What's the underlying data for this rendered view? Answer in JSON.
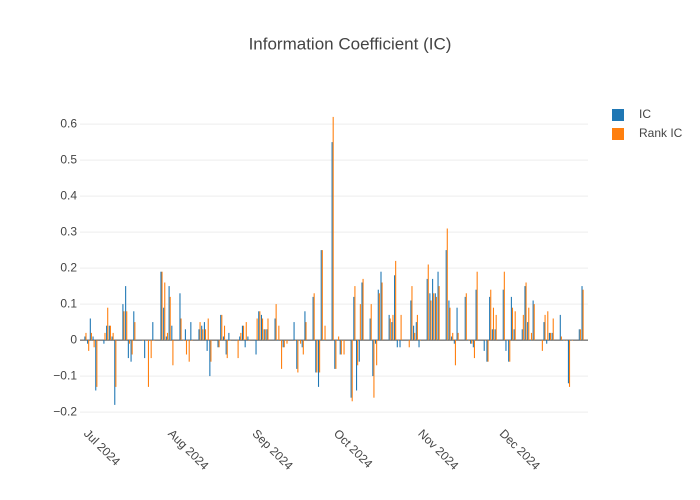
{
  "chart_data": {
    "type": "bar",
    "title": "Information Coefficient (IC)",
    "x": [
      "2024-07-01",
      "2024-07-02",
      "2024-07-03",
      "2024-07-04",
      "2024-07-05",
      "2024-07-08",
      "2024-07-09",
      "2024-07-10",
      "2024-07-11",
      "2024-07-12",
      "2024-07-15",
      "2024-07-16",
      "2024-07-17",
      "2024-07-18",
      "2024-07-19",
      "2024-07-22",
      "2024-07-23",
      "2024-07-24",
      "2024-07-25",
      "2024-07-26",
      "2024-07-29",
      "2024-07-30",
      "2024-07-31",
      "2024-08-01",
      "2024-08-02",
      "2024-08-05",
      "2024-08-06",
      "2024-08-07",
      "2024-08-08",
      "2024-08-09",
      "2024-08-12",
      "2024-08-13",
      "2024-08-14",
      "2024-08-15",
      "2024-08-16",
      "2024-08-19",
      "2024-08-20",
      "2024-08-21",
      "2024-08-22",
      "2024-08-23",
      "2024-08-26",
      "2024-08-27",
      "2024-08-28",
      "2024-08-29",
      "2024-08-30",
      "2024-09-02",
      "2024-09-03",
      "2024-09-04",
      "2024-09-05",
      "2024-09-06",
      "2024-09-09",
      "2024-09-10",
      "2024-09-11",
      "2024-09-12",
      "2024-09-13",
      "2024-09-16",
      "2024-09-17",
      "2024-09-18",
      "2024-09-19",
      "2024-09-20",
      "2024-09-23",
      "2024-09-24",
      "2024-09-25",
      "2024-09-26",
      "2024-09-27",
      "2024-09-30",
      "2024-10-01",
      "2024-10-02",
      "2024-10-03",
      "2024-10-04",
      "2024-10-07",
      "2024-10-08",
      "2024-10-09",
      "2024-10-10",
      "2024-10-11",
      "2024-10-14",
      "2024-10-15",
      "2024-10-16",
      "2024-10-17",
      "2024-10-18",
      "2024-10-21",
      "2024-10-22",
      "2024-10-23",
      "2024-10-24",
      "2024-10-25",
      "2024-10-28",
      "2024-10-29",
      "2024-10-30",
      "2024-10-31",
      "2024-11-01",
      "2024-11-04",
      "2024-11-05",
      "2024-11-06",
      "2024-11-07",
      "2024-11-08",
      "2024-11-11",
      "2024-11-12",
      "2024-11-13",
      "2024-11-14",
      "2024-11-15",
      "2024-11-18",
      "2024-11-19",
      "2024-11-20",
      "2024-11-21",
      "2024-11-22",
      "2024-11-25",
      "2024-11-26",
      "2024-11-27",
      "2024-11-28",
      "2024-11-29",
      "2024-12-02",
      "2024-12-03",
      "2024-12-04",
      "2024-12-05",
      "2024-12-06",
      "2024-12-09",
      "2024-12-10",
      "2024-12-11",
      "2024-12-12",
      "2024-12-13",
      "2024-12-16",
      "2024-12-17",
      "2024-12-18",
      "2024-12-19",
      "2024-12-20",
      "2024-12-23",
      "2024-12-24",
      "2024-12-25",
      "2024-12-26",
      "2024-12-27",
      "2024-12-30",
      "2024-12-31"
    ],
    "series": [
      {
        "name": "IC",
        "color": "#1f77b4",
        "values": [
          0.01,
          -0.01,
          0.06,
          0.01,
          -0.14,
          -0.01,
          0.04,
          0.04,
          0.01,
          -0.18,
          0.1,
          0.15,
          -0.05,
          -0.06,
          0.08,
          0.0,
          -0.05,
          0.0,
          0.0,
          0.05,
          0.19,
          0.09,
          0.01,
          0.15,
          0.04,
          0.13,
          0.0,
          0.03,
          0.0,
          0.05,
          0.03,
          0.04,
          0.05,
          -0.03,
          -0.1,
          -0.02,
          0.07,
          0.01,
          -0.04,
          0.02,
          0.0,
          0.01,
          0.04,
          -0.02,
          0.01,
          -0.04,
          0.08,
          0.07,
          0.03,
          0.03,
          0.06,
          0.0,
          0.0,
          -0.02,
          0.0,
          0.05,
          -0.08,
          0.0,
          -0.02,
          0.08,
          0.12,
          -0.09,
          -0.13,
          0.25,
          0.0,
          0.55,
          -0.08,
          0.0,
          -0.04,
          0.0,
          -0.16,
          0.12,
          -0.14,
          -0.06,
          0.16,
          0.06,
          -0.1,
          -0.01,
          0.14,
          0.19,
          0.07,
          0.05,
          0.18,
          -0.02,
          -0.02,
          0.0,
          0.11,
          0.04,
          0.05,
          -0.02,
          0.17,
          0.13,
          0.17,
          0.13,
          0.19,
          0.25,
          0.11,
          0.01,
          -0.01,
          0.09,
          0.12,
          0.0,
          -0.01,
          -0.02,
          0.14,
          -0.03,
          -0.06,
          0.12,
          0.03,
          0.03,
          0.14,
          -0.03,
          -0.06,
          0.12,
          0.03,
          0.03,
          0.15,
          0.05,
          0.0,
          0.11,
          0.0,
          0.05,
          -0.01,
          0.02,
          0.02,
          0.07,
          0.0,
          0.0,
          -0.12,
          0.0,
          0.03,
          0.15
        ]
      },
      {
        "name": "Rank IC",
        "color": "#ff7f0e",
        "values": [
          0.02,
          -0.03,
          0.02,
          -0.02,
          -0.13,
          0.02,
          0.09,
          0.04,
          0.02,
          -0.13,
          0.08,
          0.08,
          -0.01,
          -0.04,
          0.05,
          0.0,
          0.0,
          -0.13,
          -0.05,
          0.0,
          0.19,
          0.16,
          0.02,
          0.12,
          -0.07,
          0.06,
          0.0,
          -0.04,
          -0.06,
          0.0,
          0.05,
          0.03,
          0.03,
          0.06,
          -0.06,
          -0.02,
          0.07,
          0.04,
          -0.05,
          0.0,
          -0.05,
          0.02,
          0.04,
          0.05,
          0.0,
          0.06,
          0.08,
          0.06,
          0.03,
          0.06,
          0.1,
          0.04,
          -0.08,
          -0.02,
          -0.01,
          0.0,
          -0.09,
          -0.01,
          -0.04,
          0.05,
          0.13,
          -0.09,
          -0.09,
          0.25,
          0.04,
          0.62,
          -0.08,
          0.01,
          -0.04,
          -0.04,
          -0.17,
          0.15,
          -0.07,
          0.1,
          0.17,
          0.1,
          -0.16,
          -0.07,
          0.13,
          0.16,
          0.06,
          0.07,
          0.22,
          0.0,
          0.07,
          -0.02,
          0.15,
          0.02,
          0.07,
          0.0,
          0.21,
          0.11,
          0.13,
          0.12,
          0.15,
          0.31,
          0.09,
          0.02,
          -0.07,
          0.02,
          0.13,
          0.0,
          -0.01,
          -0.05,
          0.19,
          0.0,
          -0.06,
          0.14,
          0.09,
          0.07,
          0.19,
          0.0,
          -0.06,
          0.09,
          0.08,
          0.07,
          0.16,
          0.09,
          0.02,
          0.1,
          -0.03,
          0.07,
          0.08,
          0.02,
          0.06,
          0.01,
          0.0,
          0.0,
          -0.13,
          0.0,
          0.03,
          0.14
        ]
      }
    ],
    "xlim": [
      "2024-06-29",
      "2025-01-02"
    ],
    "xticks": [
      {
        "value": "2024-07-01",
        "label": "Jul 2024"
      },
      {
        "value": "2024-08-01",
        "label": "Aug 2024"
      },
      {
        "value": "2024-09-01",
        "label": "Sep 2024"
      },
      {
        "value": "2024-10-01",
        "label": "Oct 2024"
      },
      {
        "value": "2024-11-01",
        "label": "Nov 2024"
      },
      {
        "value": "2024-12-01",
        "label": "Dec 2024"
      }
    ],
    "ylim": [
      -0.222,
      0.667
    ],
    "yticks": [
      {
        "value": -0.2,
        "label": "−0.2"
      },
      {
        "value": -0.1,
        "label": "−0.1"
      },
      0,
      0.1,
      0.2,
      0.3,
      0.4,
      0.5,
      0.6
    ],
    "grid": true,
    "legend": "top-right"
  }
}
